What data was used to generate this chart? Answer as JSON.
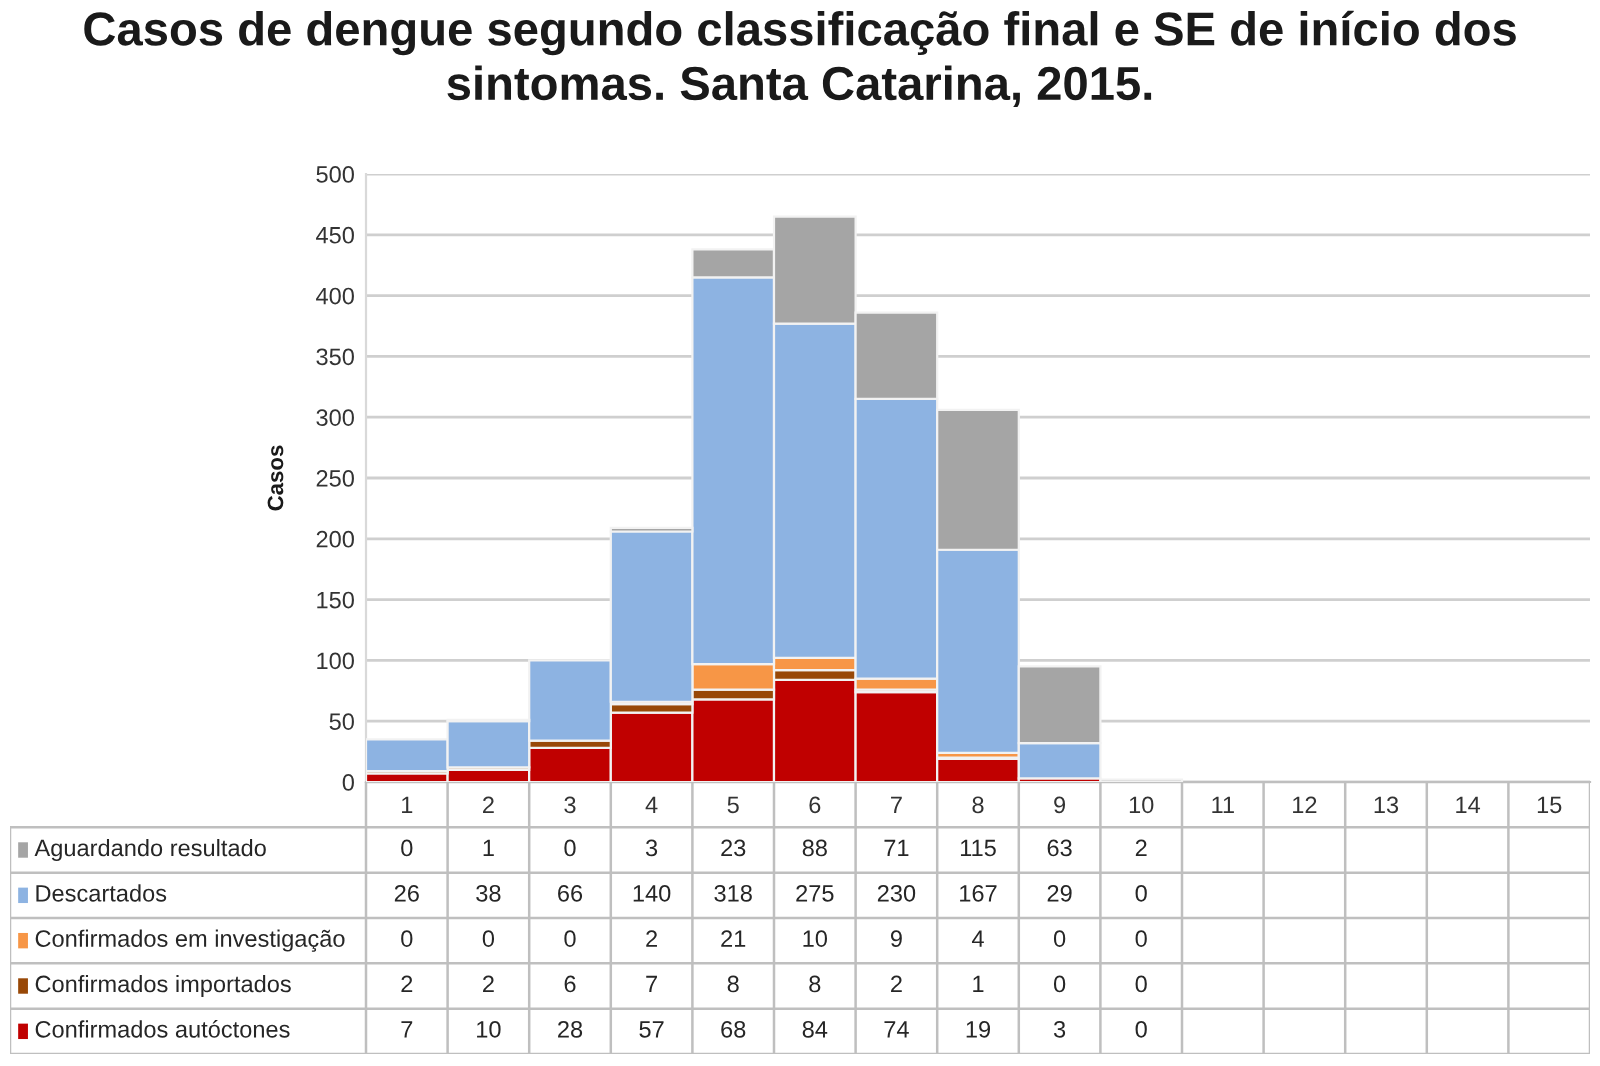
{
  "chart_data": {
    "type": "bar",
    "title": "Casos de dengue segundo classificação final e SE de início dos sintomas. Santa Catarina, 2015.",
    "ylabel": "Casos",
    "categories": [
      "1",
      "2",
      "3",
      "4",
      "5",
      "6",
      "7",
      "8",
      "9",
      "10",
      "11",
      "12",
      "13",
      "14",
      "15"
    ],
    "stacked": true,
    "series": [
      {
        "name": "Confirmados autóctones",
        "color": "#c00000",
        "values": [
          7,
          10,
          28,
          57,
          68,
          84,
          74,
          19,
          3,
          0,
          null,
          null,
          null,
          null,
          null
        ]
      },
      {
        "name": "Confirmados importados",
        "color": "#984807",
        "values": [
          2,
          2,
          6,
          7,
          8,
          8,
          2,
          1,
          0,
          0,
          null,
          null,
          null,
          null,
          null
        ]
      },
      {
        "name": "Confirmados em investigação",
        "color": "#f79646",
        "values": [
          0,
          0,
          0,
          2,
          21,
          10,
          9,
          4,
          0,
          0,
          null,
          null,
          null,
          null,
          null
        ]
      },
      {
        "name": "Descartados",
        "color": "#8db3e2",
        "values": [
          26,
          38,
          66,
          140,
          318,
          275,
          230,
          167,
          29,
          0,
          null,
          null,
          null,
          null,
          null
        ]
      },
      {
        "name": "Aguardando resultado",
        "color": "#a5a5a5",
        "values": [
          0,
          1,
          0,
          3,
          23,
          88,
          71,
          115,
          63,
          2,
          null,
          null,
          null,
          null,
          null
        ]
      }
    ],
    "ylim": [
      0,
      500
    ],
    "yticks": [
      0,
      50,
      100,
      150,
      200,
      250,
      300,
      350,
      400,
      450,
      500
    ],
    "grid": "y",
    "legend": "bottom",
    "data_labels": true
  }
}
